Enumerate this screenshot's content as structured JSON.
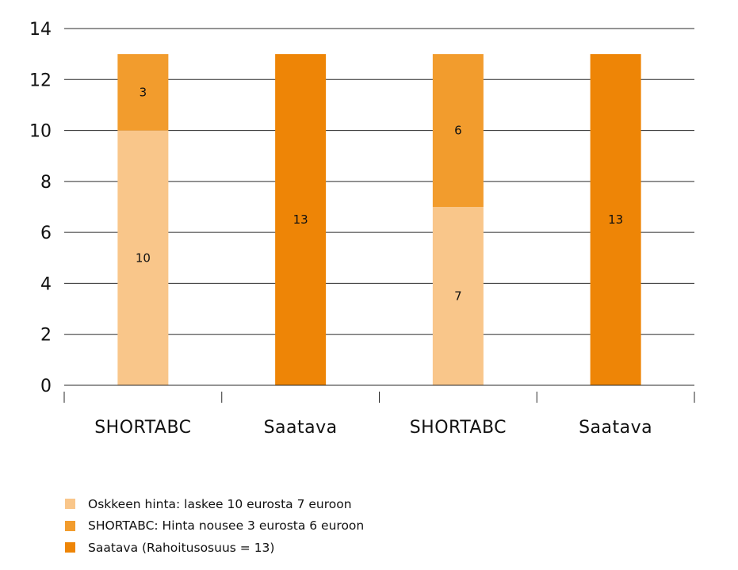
{
  "chart_data": {
    "type": "bar",
    "stacked": true,
    "categories": [
      "SHORTABC",
      "Saatava",
      "SHORTABC",
      "Saatava"
    ],
    "series": [
      {
        "name": "Oskkeen hinta: laskee 10 eurosta 7 euroon",
        "color": "#f9c68a",
        "values": [
          10,
          0,
          7,
          0
        ],
        "labels": [
          "10",
          "",
          "7",
          ""
        ]
      },
      {
        "name": "SHORTABC: Hinta nousee 3 eurosta 6 euroon",
        "color": "#f29c2d",
        "values": [
          3,
          0,
          6,
          0
        ],
        "labels": [
          "3",
          "",
          "6",
          ""
        ]
      },
      {
        "name": "Saatava (Rahoitusosuus = 13)",
        "color": "#ee8506",
        "values": [
          0,
          13,
          0,
          13
        ],
        "labels": [
          "",
          "13",
          "",
          "13"
        ]
      }
    ],
    "yticks": [
      "0",
      "2",
      "4",
      "6",
      "8",
      "10",
      "12",
      "14"
    ],
    "ylim": [
      0,
      14
    ],
    "grid": true,
    "legend_position": "bottom-left"
  }
}
